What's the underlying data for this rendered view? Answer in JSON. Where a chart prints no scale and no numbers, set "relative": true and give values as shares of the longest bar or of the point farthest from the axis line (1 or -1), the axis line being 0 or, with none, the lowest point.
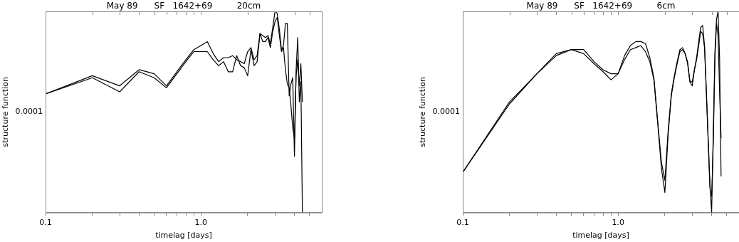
{
  "chart_data": [
    {
      "type": "line",
      "title": "May 89      SF   1642+69         20cm",
      "xlabel": "timelag [days]",
      "ylabel": "structure function",
      "relative": true,
      "log": "x",
      "grid": false,
      "legend": false,
      "marker": "none",
      "line_style": "solid",
      "annotations": [
        "0.0001"
      ],
      "xlim": [
        0.1,
        6
      ],
      "xticks": [
        {
          "value": 0.1,
          "label": "0.1"
        },
        {
          "value": 0.2,
          "label": null
        },
        {
          "value": 0.3,
          "label": null
        },
        {
          "value": 0.4,
          "label": null
        },
        {
          "value": 0.5,
          "label": null
        },
        {
          "value": 0.6,
          "label": null
        },
        {
          "value": 0.7,
          "label": null
        },
        {
          "value": 0.8,
          "label": null
        },
        {
          "value": 0.9,
          "label": null
        },
        {
          "value": 1,
          "label": "1.0"
        },
        {
          "value": 2,
          "label": null
        },
        {
          "value": 3,
          "label": null
        },
        {
          "value": 4,
          "label": null
        },
        {
          "value": 5,
          "label": null
        }
      ],
      "x": [
        0.1,
        0.2,
        0.3,
        0.4,
        0.5,
        0.6,
        0.7,
        0.8,
        0.9,
        1.0,
        1.1,
        1.2,
        1.3,
        1.4,
        1.5,
        1.6,
        1.7,
        1.8,
        1.9,
        2.0,
        2.1,
        2.2,
        2.3,
        2.4,
        2.5,
        2.6,
        2.7,
        2.8,
        2.9,
        3.0,
        3.1,
        3.2,
        3.3,
        3.4,
        3.5,
        3.6,
        3.7,
        3.8,
        3.9,
        4.0,
        4.1,
        4.2,
        4.3,
        4.4,
        4.5
      ],
      "series": [
        {
          "color": "#000000",
          "values": [
            0.59,
            0.68,
            0.63,
            0.71,
            0.69,
            0.63,
            0.7,
            0.76,
            0.81,
            0.83,
            0.85,
            0.79,
            0.75,
            0.77,
            0.77,
            0.78,
            0.76,
            0.75,
            0.74,
            0.8,
            0.82,
            0.76,
            0.78,
            0.89,
            0.88,
            0.87,
            0.88,
            0.84,
            0.92,
            1,
            0.99,
            0.91,
            0.81,
            0.83,
            0.94,
            0.94,
            0.58,
            0.64,
            0.67,
            0.28,
            0.71,
            0.87,
            0.55,
            0.65,
            0
          ]
        },
        {
          "color": "#000000",
          "values": [
            0.59,
            0.67,
            0.6,
            0.7,
            0.67,
            0.62,
            0.69,
            0.75,
            0.8,
            0.8,
            0.8,
            0.76,
            0.73,
            0.75,
            0.7,
            0.7,
            0.78,
            0.73,
            0.72,
            0.68,
            0.81,
            0.73,
            0.75,
            0.89,
            0.85,
            0.85,
            0.87,
            0.82,
            0.9,
            0.95,
            0.97,
            0.88,
            0.8,
            0.82,
            0.71,
            0.64,
            0.62,
            0.53,
            0.42,
            0.37,
            0.68,
            0.76,
            0.63,
            0.74,
            0.55
          ]
        }
      ]
    },
    {
      "type": "line",
      "title": "May 89      SF   1642+69         6cm",
      "xlabel": "timelag [days]",
      "ylabel": "structure function",
      "relative": true,
      "log": "x",
      "grid": false,
      "legend": false,
      "marker": "none",
      "line_style": "solid",
      "annotations": [
        "0.0001"
      ],
      "xlim": [
        0.1,
        6
      ],
      "xticks": [
        {
          "value": 0.1,
          "label": "0.1"
        },
        {
          "value": 0.2,
          "label": null
        },
        {
          "value": 0.3,
          "label": null
        },
        {
          "value": 0.4,
          "label": null
        },
        {
          "value": 0.5,
          "label": null
        },
        {
          "value": 0.6,
          "label": null
        },
        {
          "value": 0.7,
          "label": null
        },
        {
          "value": 0.8,
          "label": null
        },
        {
          "value": 0.9,
          "label": null
        },
        {
          "value": 1,
          "label": "1.0"
        },
        {
          "value": 2,
          "label": null
        },
        {
          "value": 3,
          "label": null
        },
        {
          "value": 4,
          "label": null
        },
        {
          "value": 5,
          "label": null
        }
      ],
      "x": [
        0.1,
        0.2,
        0.3,
        0.4,
        0.5,
        0.6,
        0.7,
        0.8,
        0.9,
        1.0,
        1.1,
        1.2,
        1.3,
        1.4,
        1.5,
        1.6,
        1.7,
        1.8,
        1.9,
        2.0,
        2.1,
        2.2,
        2.3,
        2.4,
        2.5,
        2.6,
        2.7,
        2.8,
        2.9,
        3.0,
        3.1,
        3.2,
        3.3,
        3.4,
        3.5,
        3.6,
        3.7,
        3.8,
        3.9,
        4.0,
        4.1,
        4.2,
        4.3,
        4.4,
        4.5,
        4.6
      ],
      "series": [
        {
          "color": "#000000",
          "values": [
            0.2,
            0.55,
            0.69,
            0.79,
            0.81,
            0.81,
            0.75,
            0.71,
            0.69,
            0.69,
            0.78,
            0.83,
            0.85,
            0.85,
            0.84,
            0.77,
            0.67,
            0.45,
            0.25,
            0.16,
            0.41,
            0.59,
            0.68,
            0.75,
            0.81,
            0.82,
            0.79,
            0.75,
            0.65,
            0.63,
            0.71,
            0.77,
            0.85,
            0.92,
            0.93,
            0.83,
            0.6,
            0.37,
            0.14,
            0,
            0.41,
            0.8,
            0.96,
            1,
            0.77,
            0.18
          ]
        },
        {
          "color": "#000000",
          "values": [
            0.2,
            0.54,
            0.69,
            0.78,
            0.81,
            0.79,
            0.74,
            0.7,
            0.66,
            0.69,
            0.76,
            0.81,
            0.82,
            0.83,
            0.8,
            0.75,
            0.66,
            0.44,
            0.22,
            0.1,
            0.39,
            0.58,
            0.67,
            0.74,
            0.8,
            0.81,
            0.79,
            0.74,
            0.65,
            0.65,
            0.71,
            0.76,
            0.83,
            0.9,
            0.89,
            0.82,
            0.59,
            0.35,
            0.12,
            0.08,
            0.35,
            0.77,
            0.94,
            0.88,
            0.6,
            0.37
          ]
        }
      ]
    }
  ]
}
